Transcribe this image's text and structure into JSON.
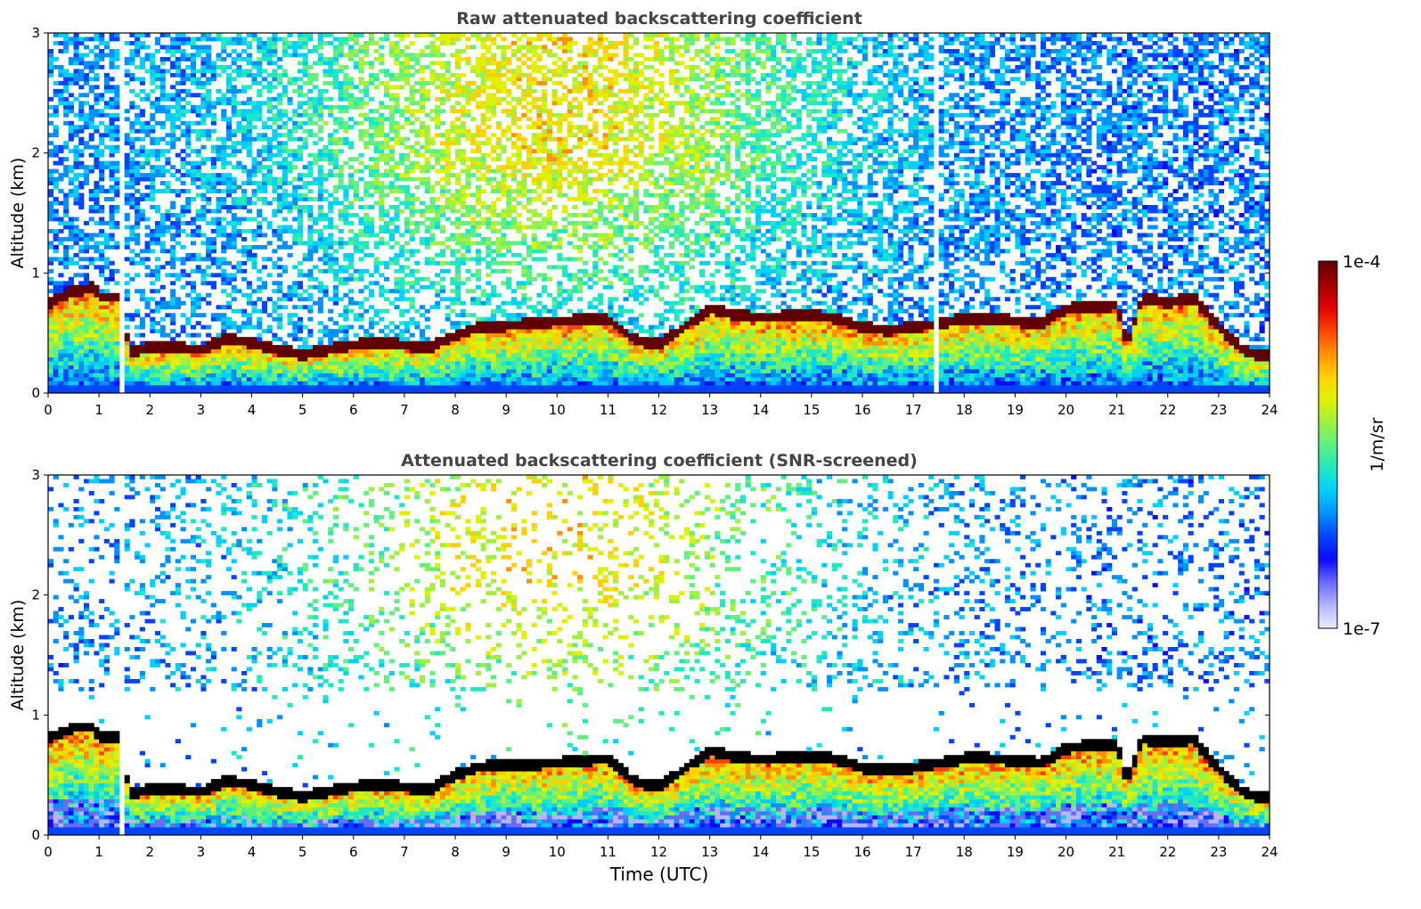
{
  "chart_data": [
    {
      "type": "heatmap",
      "title": "Raw attenuated backscattering coefficient",
      "xlabel": "",
      "ylabel": "Altitude (km)",
      "xlim": [
        0,
        24
      ],
      "ylim": [
        0,
        3
      ],
      "xticks": [
        "0",
        "1",
        "2",
        "3",
        "4",
        "5",
        "6",
        "7",
        "8",
        "9",
        "10",
        "11",
        "12",
        "13",
        "14",
        "15",
        "16",
        "17",
        "18",
        "19",
        "20",
        "21",
        "22",
        "23",
        "24"
      ],
      "yticks": [
        "0",
        "1",
        "2",
        "3"
      ],
      "noise_density": 0.62,
      "gaps": [
        [
          1.42,
          1.55
        ],
        [
          17.45,
          17.5
        ]
      ],
      "layer_top": [
        [
          0,
          0.75
        ],
        [
          0.5,
          0.85
        ],
        [
          0.9,
          0.88
        ],
        [
          1.0,
          0.8
        ],
        [
          1.4,
          0.8
        ],
        [
          1.6,
          0.35
        ],
        [
          2.0,
          0.38
        ],
        [
          2.5,
          0.38
        ],
        [
          3.0,
          0.36
        ],
        [
          3.5,
          0.45
        ],
        [
          4.0,
          0.42
        ],
        [
          4.3,
          0.38
        ],
        [
          4.7,
          0.35
        ],
        [
          5.0,
          0.32
        ],
        [
          5.5,
          0.36
        ],
        [
          6.0,
          0.4
        ],
        [
          6.5,
          0.43
        ],
        [
          7.0,
          0.4
        ],
        [
          7.5,
          0.38
        ],
        [
          8.0,
          0.48
        ],
        [
          8.5,
          0.55
        ],
        [
          9.0,
          0.56
        ],
        [
          10.0,
          0.6
        ],
        [
          11.0,
          0.62
        ],
        [
          11.5,
          0.45
        ],
        [
          12.0,
          0.4
        ],
        [
          12.5,
          0.55
        ],
        [
          13.0,
          0.7
        ],
        [
          13.5,
          0.65
        ],
        [
          14.0,
          0.63
        ],
        [
          15.0,
          0.65
        ],
        [
          15.5,
          0.62
        ],
        [
          16.0,
          0.55
        ],
        [
          16.5,
          0.52
        ],
        [
          17.0,
          0.55
        ],
        [
          17.5,
          0.58
        ],
        [
          18.0,
          0.62
        ],
        [
          18.5,
          0.62
        ],
        [
          19.0,
          0.6
        ],
        [
          19.5,
          0.58
        ],
        [
          20.0,
          0.7
        ],
        [
          20.5,
          0.72
        ],
        [
          21.0,
          0.73
        ],
        [
          21.2,
          0.4
        ],
        [
          21.5,
          0.8
        ],
        [
          22.0,
          0.75
        ],
        [
          22.5,
          0.8
        ],
        [
          23.0,
          0.55
        ],
        [
          23.5,
          0.35
        ],
        [
          24,
          0.3
        ]
      ],
      "colorbar": {
        "label": "1/m/sr",
        "min_label": "1e-7",
        "max_label": "1e-4",
        "scale": "log"
      }
    },
    {
      "type": "heatmap",
      "title": "Attenuated backscattering coefficient (SNR-screened)",
      "xlabel": "Time (UTC)",
      "ylabel": "Altitude (km)",
      "xlim": [
        0,
        24
      ],
      "ylim": [
        0,
        3
      ],
      "xticks": [
        "0",
        "1",
        "2",
        "3",
        "4",
        "5",
        "6",
        "7",
        "8",
        "9",
        "10",
        "11",
        "12",
        "13",
        "14",
        "15",
        "16",
        "17",
        "18",
        "19",
        "20",
        "21",
        "22",
        "23",
        "24"
      ],
      "yticks": [
        "0",
        "1",
        "2",
        "3"
      ],
      "noise_density": 0.22,
      "gaps": [
        [
          1.42,
          1.55
        ]
      ],
      "layer_top": [
        [
          0,
          0.8
        ],
        [
          0.5,
          0.9
        ],
        [
          0.9,
          0.9
        ],
        [
          1.0,
          0.82
        ],
        [
          1.4,
          0.82
        ],
        [
          1.6,
          0.35
        ],
        [
          2.0,
          0.38
        ],
        [
          2.5,
          0.38
        ],
        [
          3.0,
          0.36
        ],
        [
          3.5,
          0.45
        ],
        [
          4.0,
          0.42
        ],
        [
          4.3,
          0.38
        ],
        [
          4.7,
          0.35
        ],
        [
          5.0,
          0.32
        ],
        [
          5.5,
          0.36
        ],
        [
          6.0,
          0.4
        ],
        [
          6.5,
          0.43
        ],
        [
          7.0,
          0.4
        ],
        [
          7.5,
          0.38
        ],
        [
          8.0,
          0.5
        ],
        [
          8.5,
          0.57
        ],
        [
          9.0,
          0.58
        ],
        [
          10.0,
          0.6
        ],
        [
          11.0,
          0.64
        ],
        [
          11.5,
          0.45
        ],
        [
          12.0,
          0.4
        ],
        [
          12.5,
          0.55
        ],
        [
          13.0,
          0.7
        ],
        [
          13.5,
          0.65
        ],
        [
          14.0,
          0.63
        ],
        [
          15.0,
          0.66
        ],
        [
          15.5,
          0.63
        ],
        [
          16.0,
          0.56
        ],
        [
          16.5,
          0.54
        ],
        [
          17.0,
          0.56
        ],
        [
          17.5,
          0.6
        ],
        [
          18.0,
          0.64
        ],
        [
          18.5,
          0.64
        ],
        [
          19.0,
          0.62
        ],
        [
          19.5,
          0.6
        ],
        [
          20.0,
          0.72
        ],
        [
          20.5,
          0.75
        ],
        [
          21.0,
          0.76
        ],
        [
          21.2,
          0.45
        ],
        [
          21.5,
          0.8
        ],
        [
          22.0,
          0.77
        ],
        [
          22.5,
          0.8
        ],
        [
          23.0,
          0.55
        ],
        [
          23.5,
          0.35
        ],
        [
          24,
          0.3
        ]
      ],
      "colorbar": {
        "label": "1/m/sr",
        "min_label": "1e-7",
        "max_label": "1e-4",
        "scale": "log"
      }
    }
  ],
  "colorbar": {
    "label": "1/m/sr",
    "min_label": "1e-7",
    "max_label": "1e-4"
  },
  "colormap": [
    "#ececff",
    "#b4b4ff",
    "#6a6aff",
    "#0a0aff",
    "#0044ff",
    "#0090ff",
    "#00d0ff",
    "#20e8c0",
    "#60f080",
    "#a0f040",
    "#e0f000",
    "#ffd000",
    "#ff9000",
    "#ff4000",
    "#e00000",
    "#a00000",
    "#600000"
  ]
}
